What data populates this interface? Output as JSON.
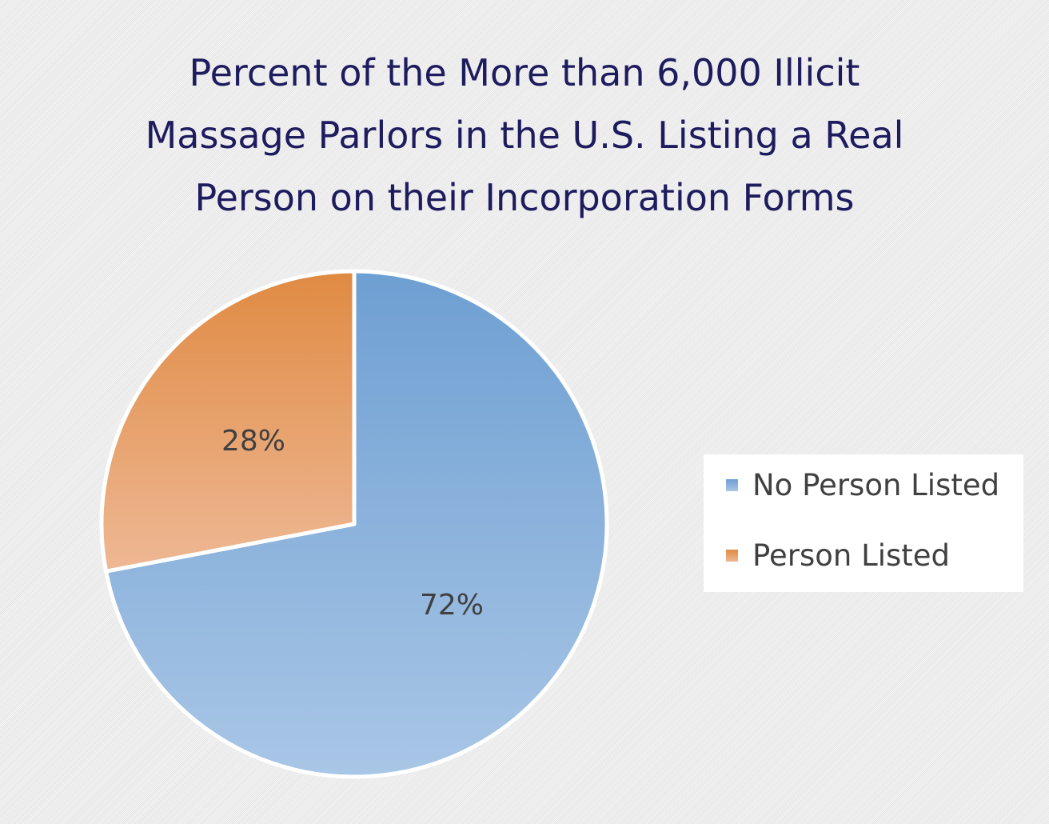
{
  "colors": {
    "title": "#1e1b5e",
    "label_text": "#404040",
    "blue_top": "#6e9fd2",
    "blue_bottom": "#a9c6e6",
    "orange_top": "#e08a43",
    "orange_bottom": "#eeb894",
    "legend_bg": "#ffffff"
  },
  "chart_data": {
    "type": "pie",
    "title": "Percent of the More than 6,000 Illicit Massage Parlors in the U.S. Listing a Real Person on their Incorporation Forms",
    "title_lines": [
      "Percent of the More than 6,000 Illicit",
      "Massage Parlors in the U.S. Listing a Real",
      "Person on their Incorporation Forms"
    ],
    "legend_position": "right",
    "slices": [
      {
        "name": "No Person Listed",
        "value": 72,
        "label": "72%",
        "color": "blue"
      },
      {
        "name": "Person Listed",
        "value": 28,
        "label": "28%",
        "color": "orange"
      }
    ]
  }
}
